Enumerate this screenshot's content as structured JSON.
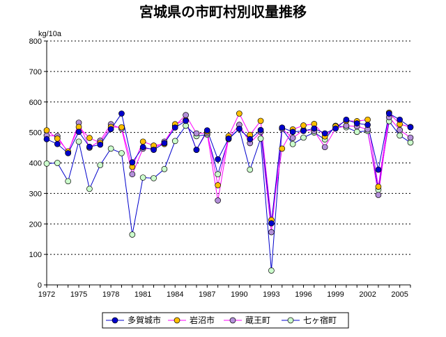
{
  "chart_data": {
    "type": "line",
    "title": "宮城県の市町村別収量推移",
    "ylabel": "kg/10a",
    "xlabel": "",
    "ylim": [
      0,
      800
    ],
    "yticks": [
      0,
      100,
      200,
      300,
      400,
      500,
      600,
      700,
      800
    ],
    "xtick_labels": [
      "1972",
      "1975",
      "1978",
      "1981",
      "1984",
      "1987",
      "1990",
      "1993",
      "1996",
      "1999",
      "2002",
      "2005"
    ],
    "grid": "horizontal dotted",
    "legend_position": "bottom",
    "x": [
      1972,
      1973,
      1974,
      1975,
      1976,
      1977,
      1978,
      1979,
      1980,
      1981,
      1982,
      1983,
      1984,
      1985,
      1986,
      1987,
      1988,
      1989,
      1990,
      1991,
      1992,
      1993,
      1994,
      1995,
      1996,
      1997,
      1998,
      1999,
      2000,
      2001,
      2002,
      2003,
      2004,
      2005,
      2006
    ],
    "series": [
      {
        "name": "多賀城市",
        "color": "#0000cc",
        "line": "#0000cc",
        "values": [
          478,
          462,
          432,
          502,
          453,
          460,
          511,
          562,
          402,
          452,
          443,
          465,
          516,
          538,
          443,
          507,
          412,
          480,
          512,
          478,
          508,
          202,
          516,
          502,
          505,
          513,
          497,
          513,
          542,
          530,
          525,
          378,
          562,
          542,
          517
        ]
      },
      {
        "name": "岩沼市",
        "color": "#ffc000",
        "line": "#ff00ff",
        "values": [
          507,
          480,
          438,
          518,
          482,
          466,
          518,
          517,
          387,
          470,
          457,
          462,
          527,
          540,
          443,
          503,
          327,
          488,
          562,
          492,
          538,
          213,
          447,
          510,
          523,
          528,
          487,
          520,
          538,
          537,
          542,
          322,
          565,
          527,
          518
        ]
      },
      {
        "name": "蔵王町",
        "color": "#b38fd9",
        "line": "#ff00ff",
        "values": [
          490,
          488,
          433,
          532,
          450,
          473,
          527,
          512,
          363,
          447,
          447,
          470,
          522,
          557,
          497,
          497,
          277,
          482,
          525,
          465,
          502,
          173,
          512,
          482,
          508,
          505,
          452,
          513,
          522,
          520,
          510,
          295,
          550,
          508,
          483
        ]
      },
      {
        "name": "七ヶ宿町",
        "color": "#ccffcc",
        "line": "#0000cc",
        "values": [
          398,
          400,
          340,
          470,
          315,
          393,
          447,
          432,
          165,
          352,
          350,
          380,
          472,
          522,
          488,
          493,
          363,
          478,
          512,
          378,
          480,
          47,
          512,
          462,
          483,
          500,
          477,
          522,
          517,
          502,
          505,
          312,
          537,
          490,
          467
        ]
      }
    ]
  }
}
